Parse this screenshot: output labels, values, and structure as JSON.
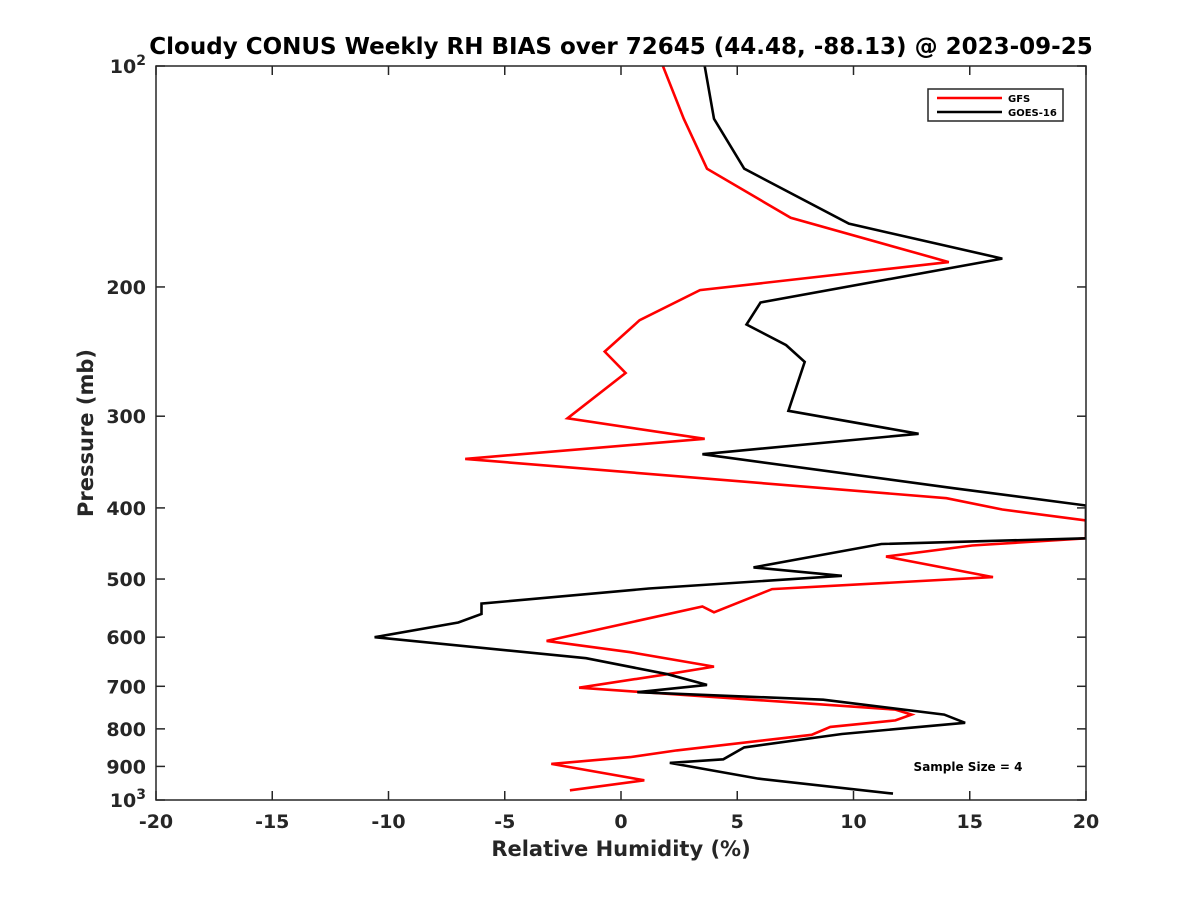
{
  "chart_data": {
    "type": "line",
    "title": "Cloudy CONUS Weekly RH BIAS over 72645 (44.48, -88.13) @ 2023-09-25",
    "xlabel": "Relative Humidity (%)",
    "ylabel": "Pressure (mb)",
    "xlim": [
      -20,
      20
    ],
    "ylim": [
      100,
      1000
    ],
    "y_scale": "log",
    "y_reversed": true,
    "grid": false,
    "legend_placement": "top-right",
    "x_ticks": [
      "-20",
      "-15",
      "-10",
      "-5",
      "0",
      "5",
      "10",
      "15",
      "20"
    ],
    "y_ticks": [
      {
        "value": 100,
        "base": "10",
        "exp": "2"
      },
      {
        "value": 200,
        "label": "200"
      },
      {
        "value": 300,
        "label": "300"
      },
      {
        "value": 400,
        "label": "400"
      },
      {
        "value": 500,
        "label": "500"
      },
      {
        "value": 600,
        "label": "600"
      },
      {
        "value": 700,
        "label": "700"
      },
      {
        "value": 800,
        "label": "800"
      },
      {
        "value": 900,
        "label": "900"
      },
      {
        "value": 1000,
        "base": "10",
        "exp": "3"
      }
    ],
    "series": [
      {
        "name": "GFS",
        "color": "#ff0000",
        "x": [
          1.8,
          2.7,
          3.7,
          7.3,
          14.1,
          3.4,
          0.8,
          -0.7,
          0.2,
          -2.3,
          3.6,
          -6.7,
          14.0,
          16.4,
          20.0,
          20.0,
          15.1,
          11.4,
          16.0,
          6.5,
          4.0,
          3.5,
          -3.2,
          0.4,
          4.0,
          2.1,
          -1.8,
          11.8,
          12.5,
          11.8,
          9.0,
          8.2,
          2.4,
          0.4,
          -3.0,
          1.0,
          -2.2
        ],
        "y": [
          100,
          118,
          138,
          161,
          185,
          202,
          222,
          245,
          262,
          302,
          322,
          343,
          388,
          402,
          416,
          440,
          450,
          466,
          497,
          516,
          555,
          545,
          607,
          629,
          658,
          673,
          703,
          753,
          765,
          779,
          795,
          815,
          856,
          874,
          893,
          940,
          970
        ]
      },
      {
        "name": "GOES-16",
        "color": "#000000",
        "x": [
          3.6,
          4.0,
          5.3,
          9.8,
          16.4,
          6.0,
          5.4,
          7.1,
          7.9,
          7.2,
          12.8,
          3.5,
          14.3,
          20.0,
          20.0,
          11.2,
          5.7,
          9.5,
          1.2,
          -6.0,
          -6.0,
          -7.0,
          -10.6,
          -1.5,
          2.0,
          3.7,
          0.7,
          8.7,
          13.9,
          14.8,
          9.5,
          5.3,
          4.4,
          2.1,
          5.9,
          11.7
        ],
        "y": [
          100,
          118,
          138,
          164,
          183,
          210,
          225,
          240,
          253,
          295,
          317,
          338,
          376,
          397,
          440,
          448,
          482,
          495,
          515,
          540,
          558,
          573,
          600,
          641,
          674,
          697,
          713,
          730,
          765,
          785,
          813,
          848,
          880,
          890,
          935,
          980
        ]
      }
    ],
    "annotation": "Sample Size = 4"
  }
}
